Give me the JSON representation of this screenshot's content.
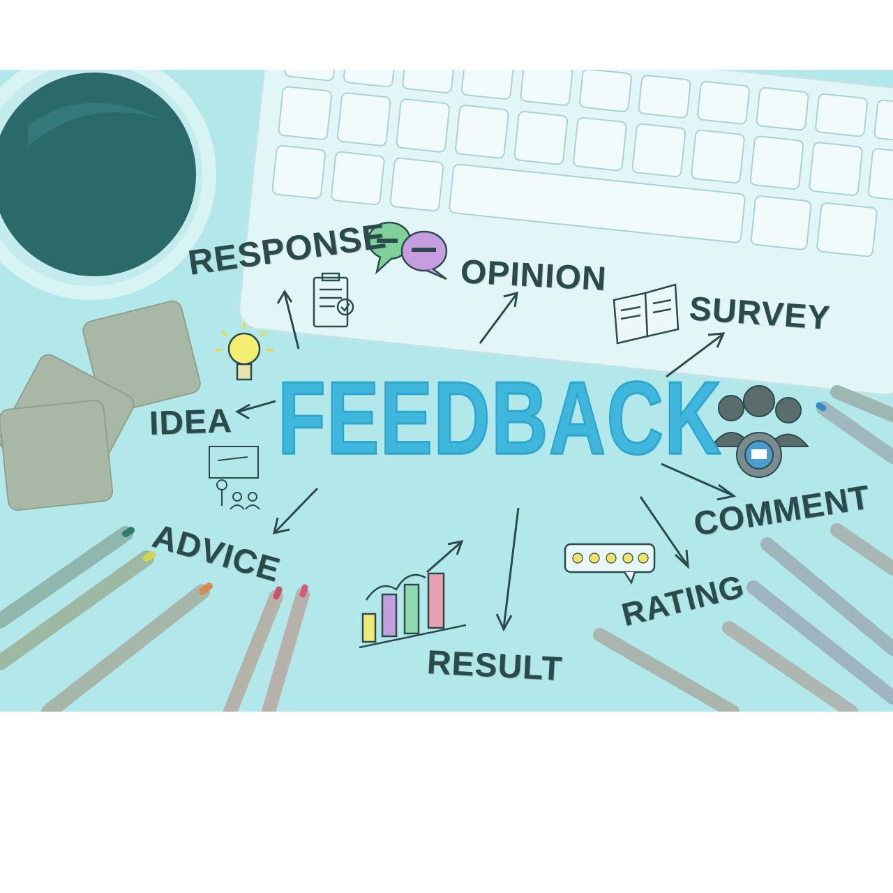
{
  "headline": "FEEDBACK",
  "keywords": {
    "response": "RESPONSE",
    "opinion": "OPINION",
    "survey": "SURVEY",
    "idea": "IDEA",
    "advice": "ADVICE",
    "comment": "COMMENT",
    "rating": "RATING",
    "result": "RESULT"
  },
  "colors": {
    "tint": "#b3e8ea",
    "headline": "#3fb7dc",
    "ink": "#2b4a4c",
    "page": "#ffffff"
  }
}
